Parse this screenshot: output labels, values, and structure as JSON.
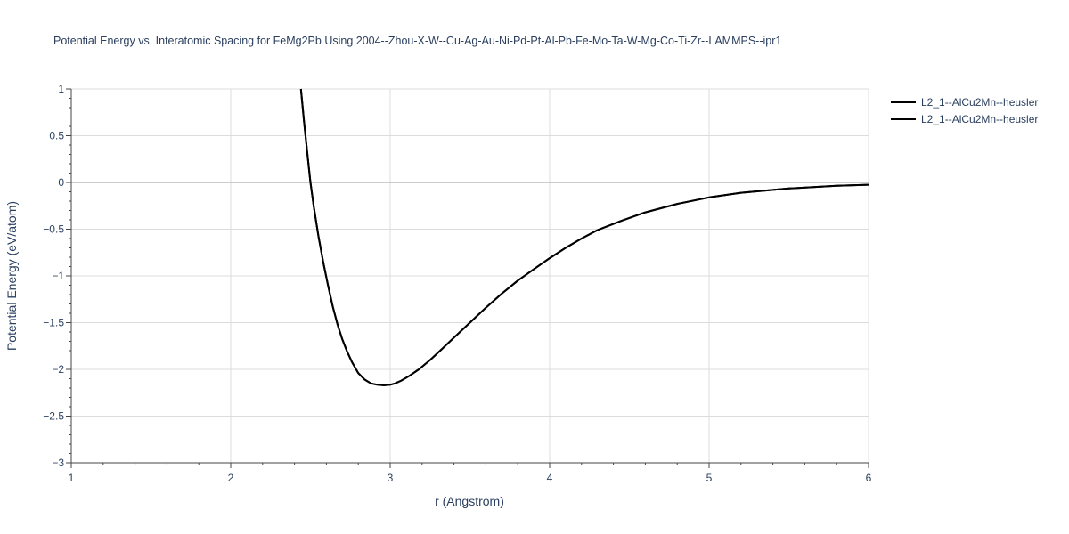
{
  "chart_data": {
    "type": "line",
    "title": "Potential Energy vs. Interatomic Spacing for FeMg2Pb Using 2004--Zhou-X-W--Cu-Ag-Au-Ni-Pd-Pt-Al-Pb-Fe-Mo-Ta-W-Mg-Co-Ti-Zr--LAMMPS--ipr1",
    "xlabel": "r (Angstrom)",
    "ylabel": "Potential Energy (eV/atom)",
    "xlim": [
      1,
      6
    ],
    "ylim": [
      -3,
      1
    ],
    "xticks": [
      "1",
      "2",
      "3",
      "4",
      "5",
      "6"
    ],
    "yticks": [
      "1",
      "0.5",
      "0",
      "−0.5",
      "−1",
      "−1.5",
      "−2",
      "−2.5",
      "−3"
    ],
    "grid": true,
    "legend_position": "top-right",
    "line_color": "#000000",
    "series": [
      {
        "name": "L2_1--AlCu2Mn--heusler",
        "x": [
          2.44,
          2.46,
          2.48,
          2.5,
          2.52,
          2.55,
          2.58,
          2.61,
          2.64,
          2.67,
          2.7,
          2.73,
          2.76,
          2.8,
          2.84,
          2.88,
          2.92,
          2.96,
          3.0,
          3.03,
          3.07,
          3.12,
          3.18,
          3.25,
          3.32,
          3.4,
          3.5,
          3.6,
          3.7,
          3.8,
          3.9,
          4.0,
          4.1,
          4.2,
          4.3,
          4.45,
          4.6,
          4.8,
          5.0,
          5.2,
          5.5,
          5.8,
          6.0
        ],
        "y": [
          1.0,
          0.65,
          0.32,
          0.0,
          -0.25,
          -0.57,
          -0.85,
          -1.1,
          -1.33,
          -1.52,
          -1.68,
          -1.81,
          -1.92,
          -2.04,
          -2.11,
          -2.15,
          -2.165,
          -2.17,
          -2.165,
          -2.15,
          -2.12,
          -2.07,
          -2.0,
          -1.9,
          -1.79,
          -1.66,
          -1.5,
          -1.34,
          -1.19,
          -1.05,
          -0.93,
          -0.81,
          -0.7,
          -0.6,
          -0.51,
          -0.41,
          -0.32,
          -0.23,
          -0.16,
          -0.11,
          -0.065,
          -0.035,
          -0.025
        ]
      },
      {
        "name": "L2_1--AlCu2Mn--heusler",
        "x": [
          2.44,
          2.46,
          2.48,
          2.5,
          2.52,
          2.55,
          2.58,
          2.61,
          2.64,
          2.67,
          2.7,
          2.73,
          2.76,
          2.8,
          2.84,
          2.88,
          2.92,
          2.96,
          3.0,
          3.03,
          3.07,
          3.12,
          3.18,
          3.25,
          3.32,
          3.4,
          3.5,
          3.6,
          3.7,
          3.8,
          3.9,
          4.0,
          4.1,
          4.2,
          4.3,
          4.45,
          4.6,
          4.8,
          5.0,
          5.2,
          5.5,
          5.8,
          6.0
        ],
        "y": [
          1.0,
          0.65,
          0.32,
          0.0,
          -0.25,
          -0.57,
          -0.85,
          -1.1,
          -1.33,
          -1.52,
          -1.68,
          -1.81,
          -1.92,
          -2.04,
          -2.11,
          -2.15,
          -2.165,
          -2.17,
          -2.165,
          -2.15,
          -2.12,
          -2.07,
          -2.0,
          -1.9,
          -1.79,
          -1.66,
          -1.5,
          -1.34,
          -1.19,
          -1.05,
          -0.93,
          -0.81,
          -0.7,
          -0.6,
          -0.51,
          -0.41,
          -0.32,
          -0.23,
          -0.16,
          -0.11,
          -0.065,
          -0.035,
          -0.025
        ]
      }
    ]
  }
}
